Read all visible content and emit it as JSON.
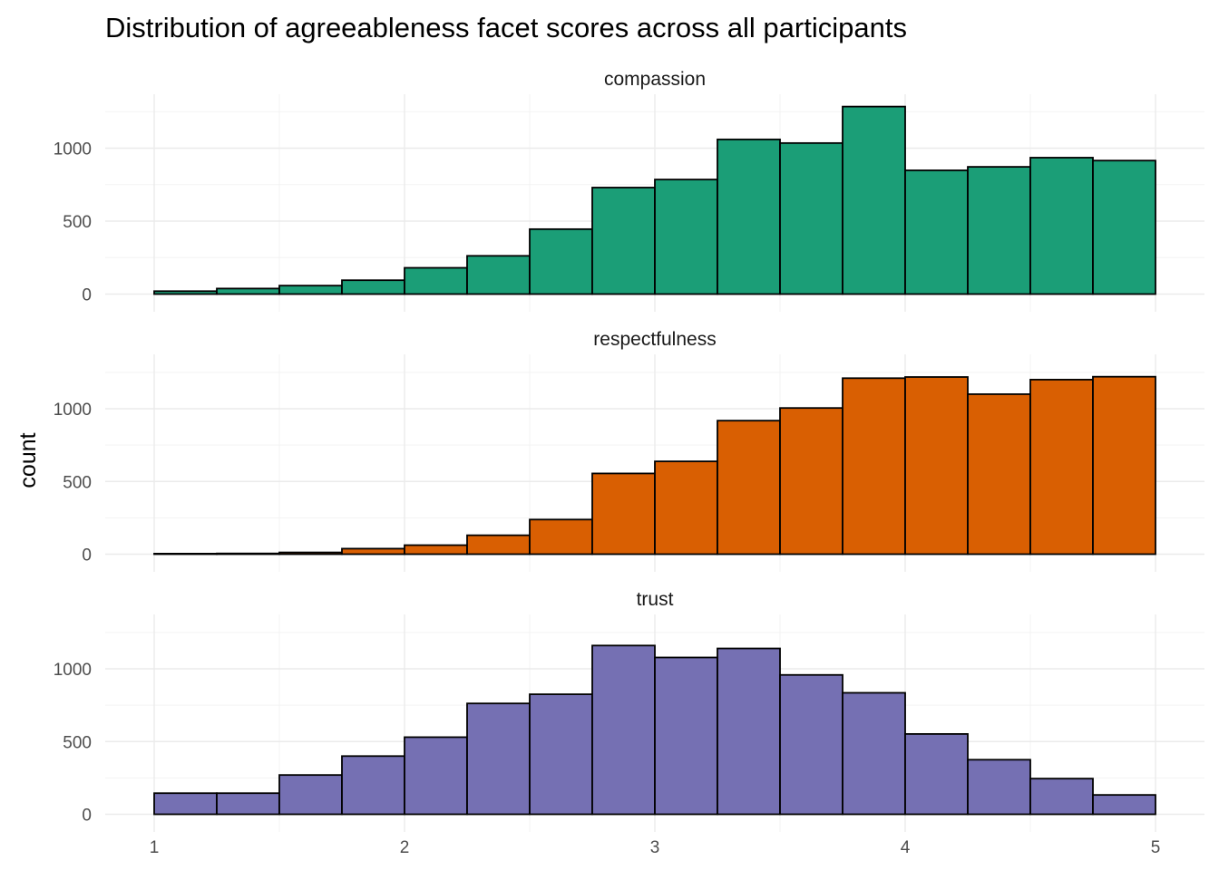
{
  "chart_data": {
    "type": "bar",
    "title": "Distribution of agreeableness facet scores across all participants",
    "xlabel": "",
    "ylabel": "count",
    "xlim": [
      1,
      5
    ],
    "x_ticks": [
      "1",
      "2",
      "3",
      "4",
      "5"
    ],
    "ylim": [
      0,
      1300
    ],
    "y_ticks": [
      "0",
      "500",
      "1000"
    ],
    "bins": [
      1.0,
      1.25,
      1.5,
      1.75,
      2.0,
      2.25,
      2.5,
      2.75,
      3.0,
      3.25,
      3.5,
      3.75,
      4.0,
      4.25,
      4.5,
      4.75,
      5.0
    ],
    "grid": true,
    "legend": "none",
    "facets": [
      {
        "label": "compassion",
        "color": "#1B9E77",
        "values": [
          20,
          38,
          58,
          95,
          180,
          262,
          445,
          730,
          785,
          1060,
          1035,
          1285,
          848,
          872,
          935,
          915
        ]
      },
      {
        "label": "respectfulness",
        "color": "#D95F02",
        "values": [
          2,
          5,
          12,
          38,
          62,
          130,
          238,
          555,
          638,
          918,
          1005,
          1210,
          1218,
          1100,
          1200,
          1220
        ]
      },
      {
        "label": "trust",
        "color": "#7570B3",
        "values": [
          145,
          145,
          270,
          400,
          530,
          762,
          825,
          1160,
          1078,
          1140,
          958,
          835,
          552,
          375,
          245,
          133
        ]
      }
    ]
  }
}
